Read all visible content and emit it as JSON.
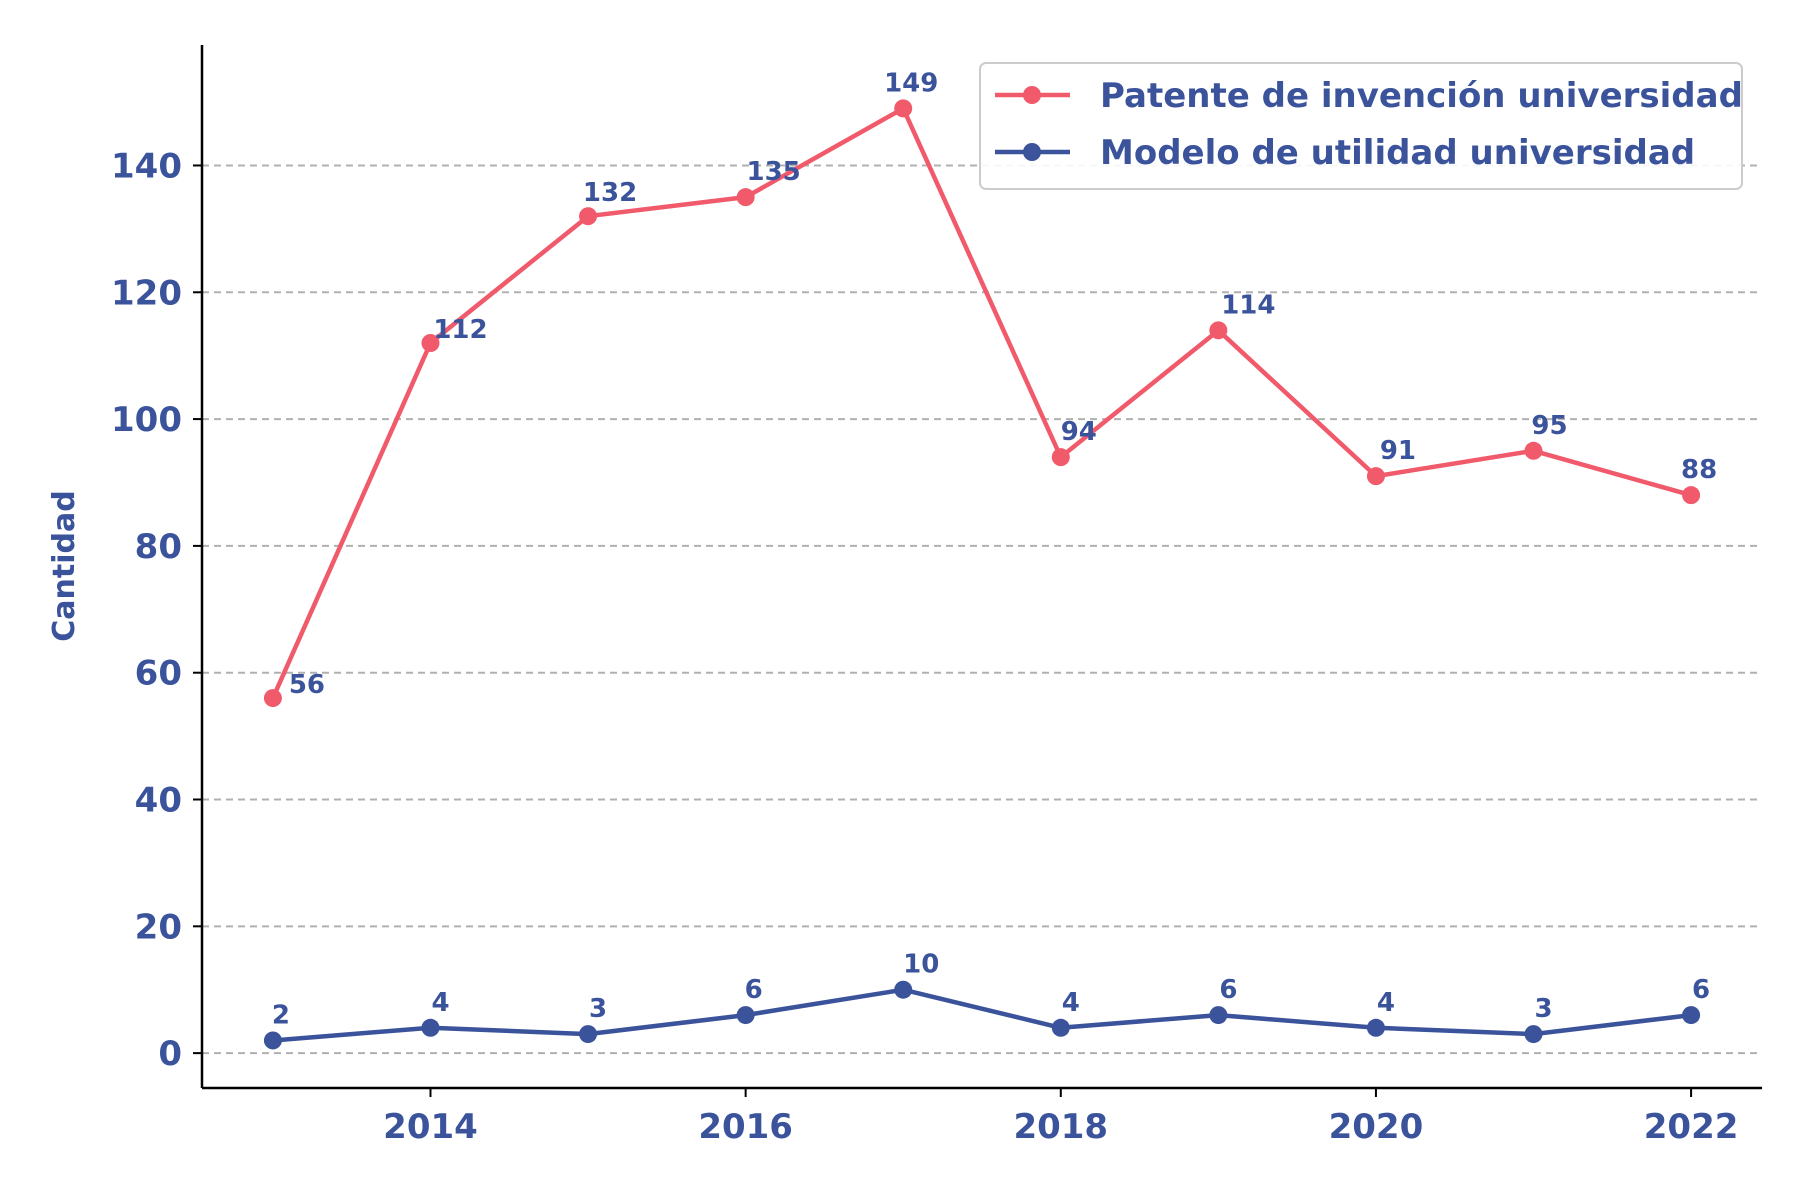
{
  "chart_data": {
    "type": "line",
    "title": "",
    "xlabel": "",
    "ylabel": "Cantidad",
    "x": [
      2013,
      2014,
      2015,
      2016,
      2017,
      2018,
      2019,
      2020,
      2021,
      2022
    ],
    "xticks": [
      "2014",
      "2016",
      "2018",
      "2020",
      "2022"
    ],
    "yticks": [
      "0",
      "20",
      "40",
      "60",
      "80",
      "100",
      "120",
      "140"
    ],
    "ylim": [
      -5.5,
      159
    ],
    "xlim": [
      2012.55,
      2022.45
    ],
    "grid": "horizontal dashed",
    "legend_position": "top-right",
    "series": [
      {
        "name": "Patente de invención universidad",
        "color": "#f05a6a",
        "values": [
          56,
          112,
          132,
          135,
          149,
          94,
          114,
          91,
          95,
          88
        ]
      },
      {
        "name": "Modelo de utilidad universidad",
        "color": "#3a539b",
        "values": [
          2,
          4,
          3,
          6,
          10,
          4,
          6,
          4,
          3,
          6
        ]
      }
    ]
  }
}
